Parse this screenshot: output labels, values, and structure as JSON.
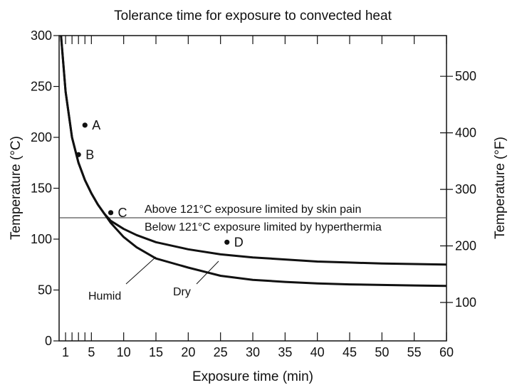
{
  "chart_data": {
    "type": "line",
    "title": "Tolerance time for exposure to convected heat",
    "xlabel": "Exposure time (min)",
    "ylabel_left": "Temperature (°C)",
    "ylabel_right": "Temperature (°F)",
    "xlim": [
      0,
      60
    ],
    "ylim": [
      0,
      300
    ],
    "right_axis_fahrenheit_ticks": [
      {
        "value": 100,
        "label": "100"
      },
      {
        "value": 200,
        "label": "200"
      },
      {
        "value": 300,
        "label": "300"
      },
      {
        "value": 400,
        "label": "400"
      },
      {
        "value": 500,
        "label": "500"
      }
    ],
    "x_ticks": [
      {
        "value": 1,
        "label": "1"
      },
      {
        "value": 5,
        "label": "5"
      },
      {
        "value": 10,
        "label": "10"
      },
      {
        "value": 15,
        "label": "15"
      },
      {
        "value": 20,
        "label": "20"
      },
      {
        "value": 25,
        "label": "25"
      },
      {
        "value": 30,
        "label": "30"
      },
      {
        "value": 35,
        "label": "35"
      },
      {
        "value": 40,
        "label": "40"
      },
      {
        "value": 45,
        "label": "45"
      },
      {
        "value": 50,
        "label": "50"
      },
      {
        "value": 55,
        "label": "55"
      },
      {
        "value": 60,
        "label": "60"
      }
    ],
    "x_minor_ticks": [
      2,
      3,
      4
    ],
    "y_ticks": [
      {
        "value": 0,
        "label": "0"
      },
      {
        "value": 50,
        "label": "50"
      },
      {
        "value": 100,
        "label": "100"
      },
      {
        "value": 150,
        "label": "150"
      },
      {
        "value": 200,
        "label": "200"
      },
      {
        "value": 250,
        "label": "250"
      },
      {
        "value": 300,
        "label": "300"
      }
    ],
    "series": [
      {
        "name": "Dry",
        "x": [
          0.3,
          1,
          2,
          3,
          4,
          5,
          6,
          7,
          8,
          10,
          12,
          15,
          20,
          25,
          30,
          35,
          40,
          45,
          50,
          55,
          60
        ],
        "y": [
          300,
          245,
          200,
          175,
          158,
          145,
          134,
          125,
          118,
          110,
          104,
          97,
          90,
          85,
          82,
          80,
          78,
          77,
          76,
          75.5,
          75
        ]
      },
      {
        "name": "Humid",
        "x": [
          0.3,
          1,
          2,
          3,
          4,
          5,
          6,
          7,
          8,
          10,
          12,
          15,
          20,
          25,
          30,
          35,
          40,
          45,
          50,
          55,
          60
        ],
        "y": [
          300,
          245,
          200,
          175,
          158,
          145,
          134,
          125,
          116,
          102,
          92,
          81,
          72,
          64,
          60,
          58,
          56.5,
          55.5,
          55,
          54.5,
          54
        ]
      }
    ],
    "points": [
      {
        "label": "A",
        "x": 4,
        "y": 212
      },
      {
        "label": "B",
        "x": 3,
        "y": 183
      },
      {
        "label": "C",
        "x": 8,
        "y": 126
      },
      {
        "label": "D",
        "x": 26,
        "y": 97
      }
    ],
    "reference_line": {
      "y": 121
    },
    "annotations": [
      "Above 121°C exposure limited by skin pain",
      "Below 121°C exposure limited by hyperthermia"
    ],
    "curve_labels": [
      {
        "series": "Humid",
        "text": "Humid"
      },
      {
        "series": "Dry",
        "text": "Dry"
      }
    ],
    "grid": false,
    "legend": "none"
  }
}
